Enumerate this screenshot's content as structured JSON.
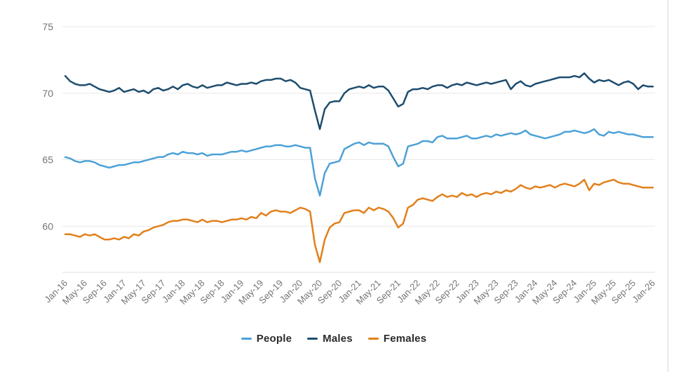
{
  "colors": {
    "background": "#ffffff",
    "gridline": "#e8e8e8",
    "axis_line": "#dcdfe3",
    "tick_text": "#757575",
    "axis_label_text": "#4f4f4f",
    "legend_text": "#2b2b2b",
    "frame_border": "#d8d8d8",
    "people_line": "#4da1d8",
    "males_line": "#1d4d6e",
    "females_line": "#e2801c"
  },
  "chart_data": {
    "type": "line",
    "ylabel": "%",
    "y_ticks": [
      75,
      70,
      65,
      60
    ],
    "ylim": [
      56.5,
      75.3
    ],
    "grid": "horizontal-only",
    "legend_position": "bottom",
    "x_tick_labels": [
      "Jan-16",
      "May-16",
      "Sep-16",
      "Jan-17",
      "May-17",
      "Sep-17",
      "Jan-18",
      "May-18",
      "Sep-18",
      "Jan-19",
      "May-19",
      "Sep-19",
      "Jan-20",
      "May-20",
      "Sep-20",
      "Jan-21",
      "May-21",
      "Sep-21",
      "Jan-22",
      "May-22",
      "Sep-22",
      "Jan-23",
      "May-23",
      "Sep-23",
      "Jan-24",
      "May-24",
      "Sep-24",
      "Jan-25",
      "May-25",
      "Sep-25",
      "Jan-26"
    ],
    "x_frequency": "monthly",
    "x_range": [
      "Jan-16",
      "Jan-26"
    ],
    "series": [
      {
        "name": "People",
        "color": "#4da1d8",
        "values": [
          65.2,
          65.1,
          64.9,
          64.8,
          64.9,
          64.9,
          64.8,
          64.6,
          64.5,
          64.4,
          64.5,
          64.6,
          64.6,
          64.7,
          64.8,
          64.8,
          64.9,
          65.0,
          65.1,
          65.2,
          65.2,
          65.4,
          65.5,
          65.4,
          65.6,
          65.5,
          65.5,
          65.4,
          65.5,
          65.3,
          65.4,
          65.4,
          65.4,
          65.5,
          65.6,
          65.6,
          65.7,
          65.6,
          65.7,
          65.8,
          65.9,
          66.0,
          66.0,
          66.1,
          66.1,
          66.0,
          66.0,
          66.1,
          66.0,
          65.9,
          65.9,
          63.6,
          62.3,
          64.0,
          64.7,
          64.8,
          64.9,
          65.8,
          66.0,
          66.2,
          66.3,
          66.1,
          66.3,
          66.2,
          66.2,
          66.2,
          66.0,
          65.2,
          64.5,
          64.7,
          66.0,
          66.1,
          66.2,
          66.4,
          66.4,
          66.3,
          66.7,
          66.8,
          66.6,
          66.6,
          66.6,
          66.7,
          66.8,
          66.6,
          66.6,
          66.7,
          66.8,
          66.7,
          66.9,
          66.8,
          66.9,
          67.0,
          66.9,
          67.0,
          67.2,
          66.9,
          66.8,
          66.7,
          66.6,
          66.7,
          66.8,
          66.9,
          67.1,
          67.1,
          67.2,
          67.1,
          67.0,
          67.1,
          67.3,
          66.9,
          66.8,
          67.1,
          67.0,
          67.1,
          67.0,
          66.9,
          66.9,
          66.8,
          66.7,
          66.7,
          66.7
        ]
      },
      {
        "name": "Males",
        "color": "#1d4d6e",
        "values": [
          71.3,
          70.9,
          70.7,
          70.6,
          70.6,
          70.7,
          70.5,
          70.3,
          70.2,
          70.1,
          70.2,
          70.4,
          70.1,
          70.2,
          70.3,
          70.1,
          70.2,
          70.0,
          70.3,
          70.4,
          70.2,
          70.3,
          70.5,
          70.3,
          70.6,
          70.7,
          70.5,
          70.4,
          70.6,
          70.4,
          70.5,
          70.6,
          70.6,
          70.8,
          70.7,
          70.6,
          70.7,
          70.7,
          70.8,
          70.7,
          70.9,
          71.0,
          71.0,
          71.1,
          71.1,
          70.9,
          71.0,
          70.8,
          70.4,
          70.3,
          70.2,
          68.7,
          67.3,
          68.8,
          69.3,
          69.4,
          69.4,
          70.0,
          70.3,
          70.4,
          70.5,
          70.4,
          70.6,
          70.4,
          70.5,
          70.5,
          70.2,
          69.6,
          69.0,
          69.2,
          70.1,
          70.3,
          70.3,
          70.4,
          70.3,
          70.5,
          70.6,
          70.6,
          70.4,
          70.6,
          70.7,
          70.6,
          70.8,
          70.7,
          70.6,
          70.7,
          70.8,
          70.7,
          70.8,
          70.9,
          71.0,
          70.3,
          70.7,
          70.9,
          70.6,
          70.5,
          70.7,
          70.8,
          70.9,
          71.0,
          71.1,
          71.2,
          71.2,
          71.2,
          71.3,
          71.2,
          71.5,
          71.1,
          70.8,
          71.0,
          70.9,
          71.0,
          70.8,
          70.6,
          70.8,
          70.9,
          70.7,
          70.3,
          70.6,
          70.5,
          70.5
        ]
      },
      {
        "name": "Females",
        "color": "#e2801c",
        "values": [
          59.4,
          59.4,
          59.3,
          59.2,
          59.4,
          59.3,
          59.4,
          59.2,
          59.0,
          59.0,
          59.1,
          59.0,
          59.2,
          59.1,
          59.4,
          59.3,
          59.6,
          59.7,
          59.9,
          60.0,
          60.1,
          60.3,
          60.4,
          60.4,
          60.5,
          60.5,
          60.4,
          60.3,
          60.5,
          60.3,
          60.4,
          60.4,
          60.3,
          60.4,
          60.5,
          60.5,
          60.6,
          60.5,
          60.7,
          60.6,
          61.0,
          60.8,
          61.1,
          61.2,
          61.1,
          61.1,
          61.0,
          61.2,
          61.4,
          61.3,
          61.1,
          58.6,
          57.3,
          59.0,
          59.9,
          60.2,
          60.3,
          61.0,
          61.1,
          61.2,
          61.2,
          61.0,
          61.4,
          61.2,
          61.4,
          61.3,
          61.1,
          60.6,
          59.9,
          60.2,
          61.4,
          61.6,
          62.0,
          62.1,
          62.0,
          61.9,
          62.2,
          62.4,
          62.2,
          62.3,
          62.2,
          62.5,
          62.3,
          62.4,
          62.2,
          62.4,
          62.5,
          62.4,
          62.6,
          62.5,
          62.7,
          62.6,
          62.8,
          63.1,
          62.9,
          62.8,
          63.0,
          62.9,
          63.0,
          63.1,
          62.9,
          63.1,
          63.2,
          63.1,
          63.0,
          63.2,
          63.5,
          62.7,
          63.2,
          63.1,
          63.3,
          63.4,
          63.5,
          63.3,
          63.2,
          63.2,
          63.1,
          63.0,
          62.9,
          62.9,
          62.9
        ]
      }
    ]
  },
  "legend": {
    "items": [
      "People",
      "Males",
      "Females"
    ]
  }
}
